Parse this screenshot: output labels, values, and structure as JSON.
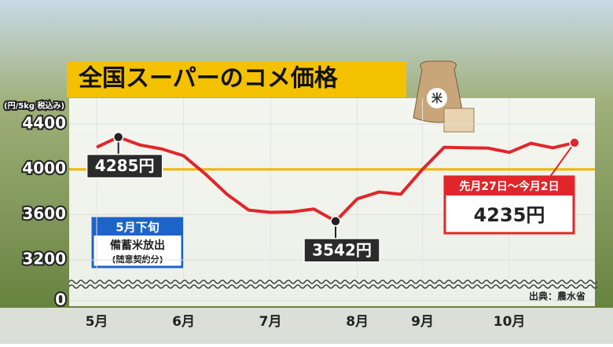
{
  "chart_data": {
    "type": "line",
    "title": "全国スーパーのコメ価格",
    "y_label": "(円/5kg 税込み)",
    "categories": [
      "5月",
      null,
      null,
      null,
      "6月",
      null,
      null,
      null,
      "7月",
      null,
      null,
      null,
      "8月",
      null,
      null,
      "9月",
      null,
      null,
      null,
      "10月",
      null,
      null,
      null
    ],
    "series": [
      {
        "color": "#e0262b",
        "values": [
          4195,
          4285,
          4215,
          4180,
          4120,
          3960,
          3780,
          3640,
          3620,
          3625,
          3650,
          3542,
          3740,
          3800,
          3780,
          4000,
          4195,
          4190,
          4188,
          4150,
          4230,
          4190,
          4235
        ]
      }
    ],
    "ylim": [
      0,
      4500
    ],
    "axis_break": [
      200,
      3000
    ],
    "yticks": [
      0,
      3200,
      3600,
      4000,
      4400
    ],
    "reference_line": {
      "value": 4000,
      "color": "#f0b400"
    },
    "annotations": [
      {
        "index": 1,
        "value": 4285,
        "label": "4285円",
        "style": "dark",
        "side": "below"
      },
      {
        "index": 11,
        "value": 3542,
        "label": "3542円",
        "style": "dark",
        "side": "below"
      },
      {
        "index": 22,
        "value": 4235,
        "label": "4235円",
        "heading": "先月27日〜今月2日",
        "style": "red",
        "side": "below"
      }
    ],
    "note": {
      "heading": "5月下旬",
      "lines": [
        "備蓄米放出",
        "(随意契約分)"
      ]
    },
    "source": "出典：農水省"
  }
}
